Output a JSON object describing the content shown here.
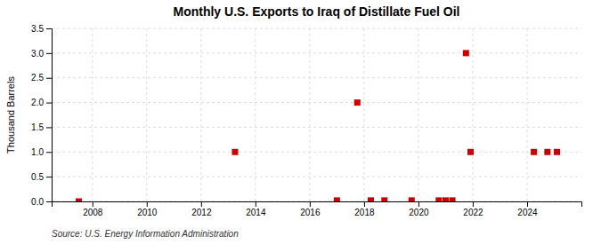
{
  "chart_data": {
    "type": "scatter",
    "title": "Monthly U.S. Exports to Iraq of Distillate Fuel Oil",
    "ylabel": "Thousand Barrels",
    "annotations": [
      "Source: U.S. Energy Information Administration"
    ],
    "x": [
      2007.5,
      2013.25,
      2017.0,
      2017.75,
      2018.25,
      2018.75,
      2019.75,
      2020.75,
      2021.0,
      2021.25,
      2021.75,
      2021.92,
      2024.25,
      2024.75,
      2025.1
    ],
    "values": [
      0.0,
      1.0,
      0.02,
      2.0,
      0.02,
      0.02,
      0.02,
      0.02,
      0.02,
      0.02,
      3.0,
      1.0,
      1.0,
      1.0,
      1.0
    ],
    "color": "#cc0000",
    "marker": "square",
    "xlim": [
      2006.5,
      2026.0
    ],
    "ylim": [
      0.0,
      3.5
    ],
    "xticks": [
      2008,
      2010,
      2012,
      2014,
      2016,
      2018,
      2020,
      2022,
      2024
    ],
    "yticks": [
      {
        "value": 0.0,
        "label": "0.0"
      },
      0.5,
      {
        "value": 1.0,
        "label": "1.0"
      },
      1.5,
      {
        "value": 2.0,
        "label": "2.0"
      },
      2.5,
      {
        "value": 3.0,
        "label": "3.0"
      },
      3.5
    ],
    "grid": true
  }
}
